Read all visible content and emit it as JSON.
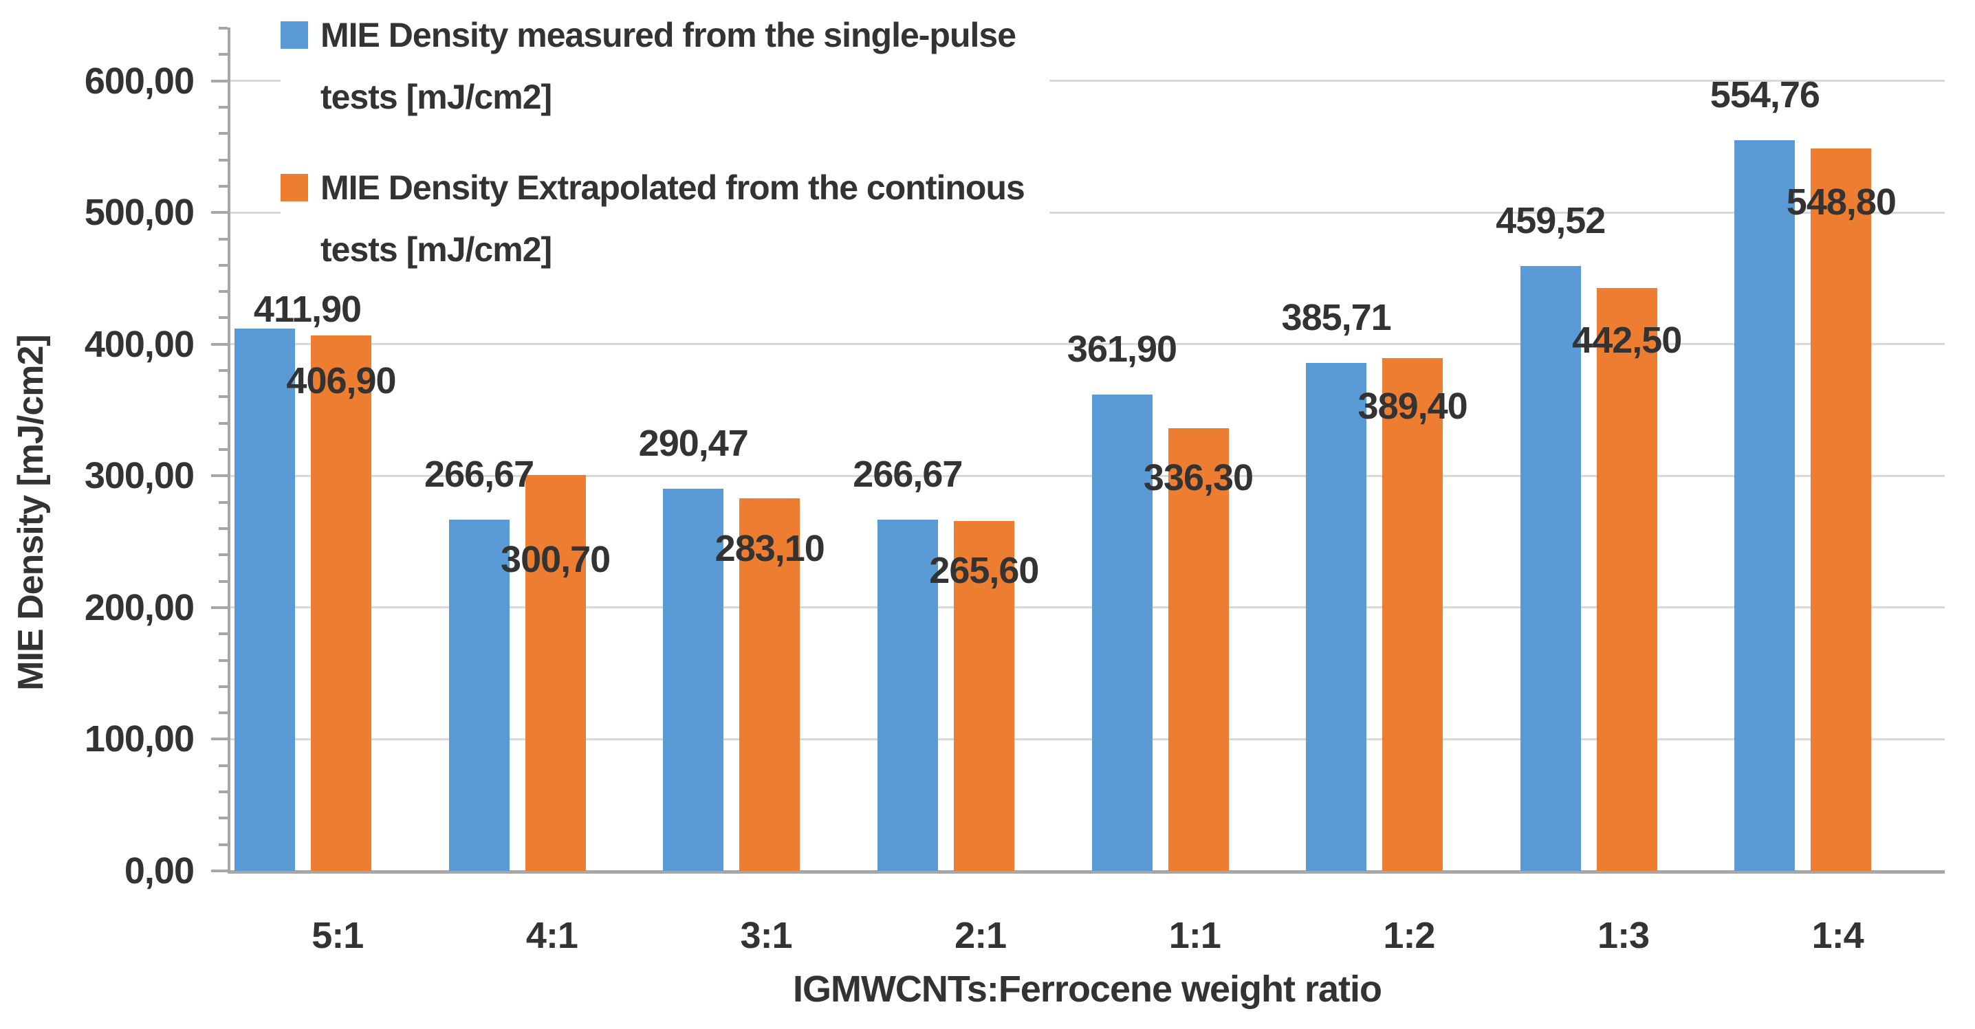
{
  "chart_data": {
    "type": "bar",
    "title": "",
    "xlabel": "IGMWCNTs:Ferrocene weight ratio",
    "ylabel": "MIE Density [mJ/cm2]",
    "categories": [
      "5:1",
      "4:1",
      "3:1",
      "2:1",
      "1:1",
      "1:2",
      "1:3",
      "1:4"
    ],
    "series": [
      {
        "name": "MIE Density measured from the single-pulse tests [mJ/cm2]",
        "name_lines": [
          "MIE Density measured from the single-pulse",
          "tests [mJ/cm2]"
        ],
        "color": "#5B9BD5",
        "values": [
          411.9,
          266.67,
          290.47,
          266.67,
          361.9,
          385.71,
          459.52,
          554.76
        ],
        "labels": [
          "411,90",
          "266,67",
          "290,47",
          "266,67",
          "361,90",
          "385,71",
          "459,52",
          "554,76"
        ]
      },
      {
        "name": "MIE Density Extrapolated from the continous tests [mJ/cm2]",
        "name_lines": [
          "MIE Density Extrapolated from the continous",
          "tests [mJ/cm2]"
        ],
        "color": "#ED7D31",
        "values": [
          406.9,
          300.7,
          283.1,
          265.6,
          336.3,
          389.4,
          442.5,
          548.8
        ],
        "labels": [
          "406,90",
          "300,70",
          "283,10",
          "265,60",
          "336,30",
          "389,40",
          "442,50",
          "548,80"
        ]
      }
    ],
    "ylim": [
      0,
      600
    ],
    "ytick_step": 100,
    "ytick_minor_step": 20,
    "ytick_labels": [
      "0,00",
      "100,00",
      "200,00",
      "300,00",
      "400,00",
      "500,00",
      "600,00"
    ],
    "grid": "horizontal-major",
    "legend_position": "top-left-inside",
    "decimal_separator": ",",
    "style": {
      "gridline_color": "#D9D9D9",
      "axis_color": "#A6A6A6",
      "text_color": "#333333",
      "background": "#FFFFFF"
    }
  }
}
